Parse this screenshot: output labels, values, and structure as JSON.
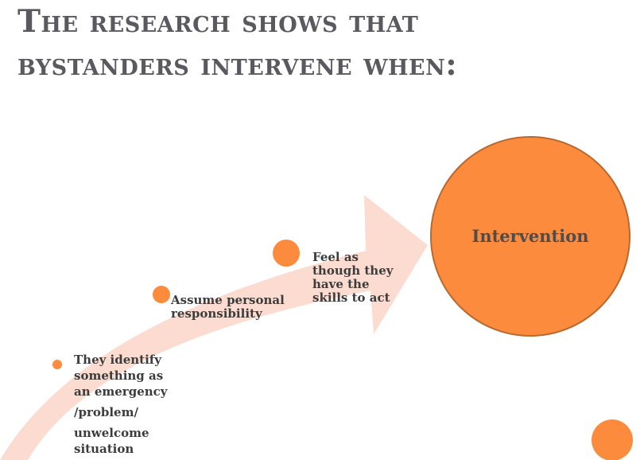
{
  "slide": {
    "title_lines": [
      "The research shows that",
      "bystanders intervene when:"
    ]
  },
  "steps": [
    {
      "id": "identify",
      "lines": [
        "They identify",
        "something as",
        "an emergency",
        "/problem/",
        "unwelcome",
        "situation"
      ]
    },
    {
      "id": "responsibility",
      "lines": [
        "Assume personal",
        "responsibility"
      ]
    },
    {
      "id": "skills",
      "lines": [
        "Feel as",
        "though they",
        "have the",
        "skills to act"
      ]
    }
  ],
  "outcome": {
    "label": "Intervention"
  },
  "colors": {
    "title": "#59595f",
    "accent": "#fd8b3e",
    "accent_border": "#b8692e",
    "arrow_fill": "#fcdcd0",
    "text": "#3c3c3c"
  }
}
